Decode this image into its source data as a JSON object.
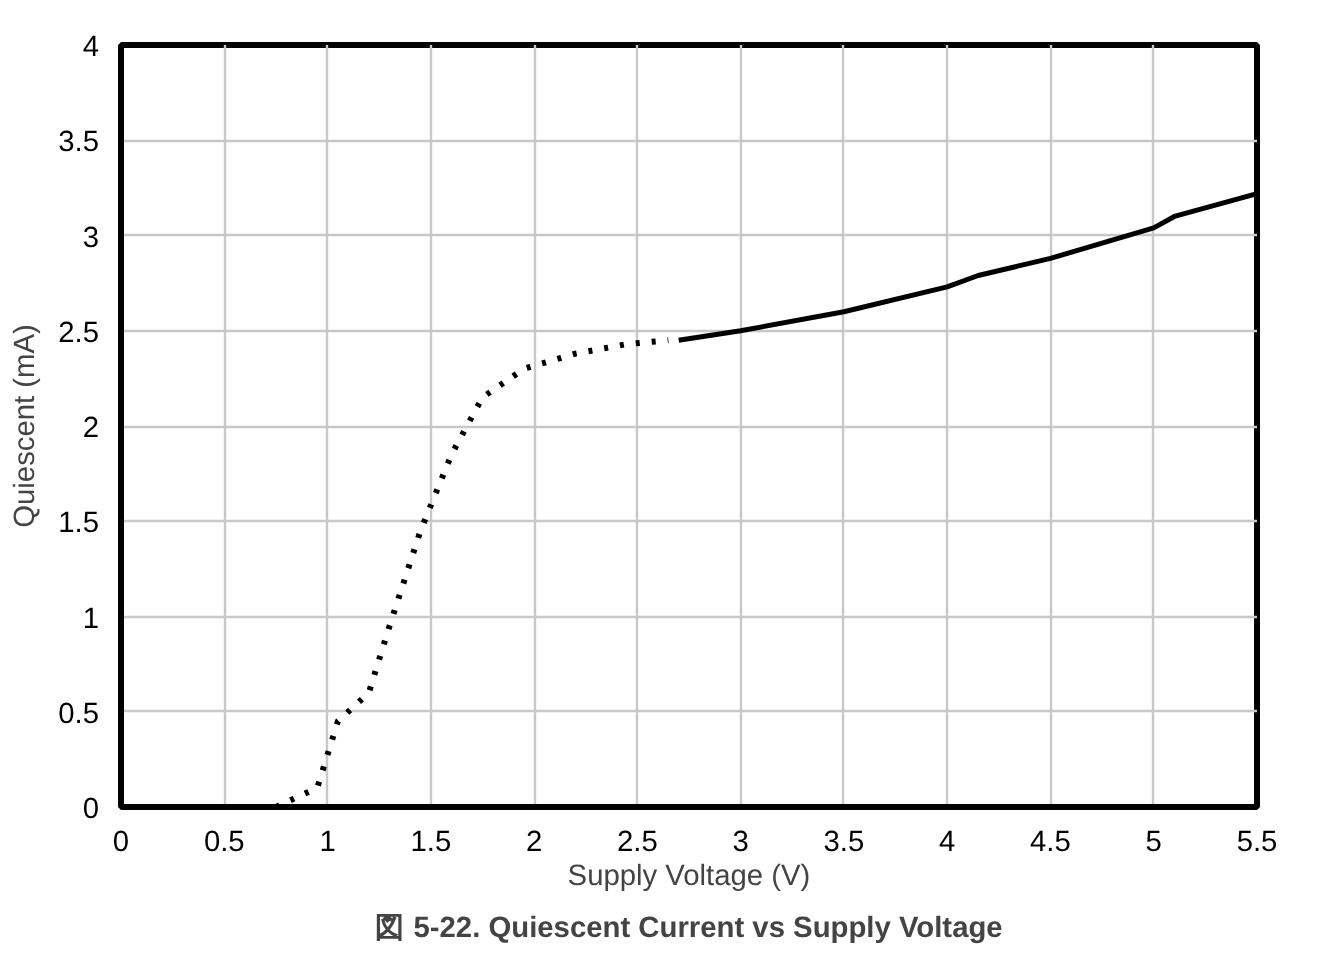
{
  "chart_data": {
    "type": "line",
    "title": "図 5-22. Quiescent Current vs Supply Voltage",
    "xlabel": "Supply Voltage (V)",
    "ylabel": "Quiescent (mA)",
    "series": [
      {
        "color": "#000000",
        "line_style": "dotted",
        "x": [
          0.75,
          0.95,
          1.05,
          1.2,
          1.3,
          1.45,
          1.6,
          1.75,
          1.95,
          2.2,
          2.45,
          2.65
        ],
        "values": [
          0,
          0.1,
          0.45,
          0.6,
          0.95,
          1.45,
          1.85,
          2.15,
          2.3,
          2.38,
          2.43,
          2.45
        ]
      },
      {
        "color": "#000000",
        "line_style": "solid",
        "x": [
          2.7,
          3,
          3.5,
          4,
          4.15,
          4.5,
          5,
          5.1,
          5.5
        ],
        "values": [
          2.45,
          2.5,
          2.6,
          2.73,
          2.79,
          2.88,
          3.04,
          3.1,
          3.22
        ]
      }
    ],
    "xlim": [
      0,
      5.5
    ],
    "ylim": [
      0,
      4
    ],
    "xticks": [
      0,
      0.5,
      1,
      1.5,
      2,
      2.5,
      3,
      3.5,
      4,
      4.5,
      5,
      5.5
    ],
    "yticks": [
      0,
      0.5,
      1,
      1.5,
      2,
      2.5,
      3,
      3.5,
      4
    ],
    "grid": true,
    "marker": "none"
  }
}
